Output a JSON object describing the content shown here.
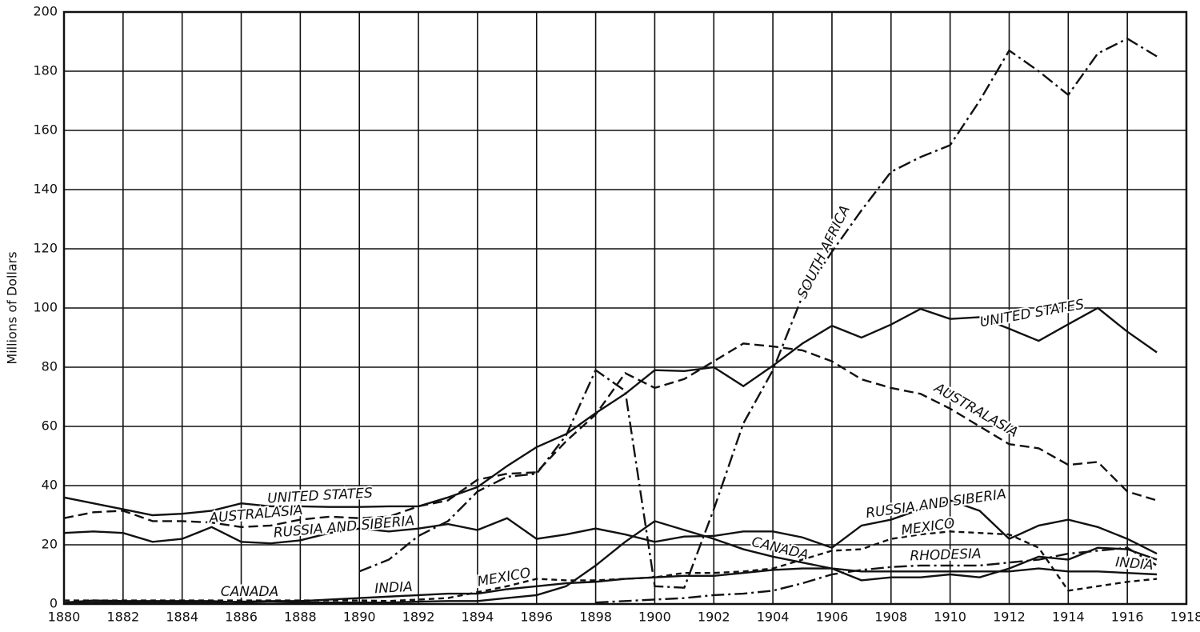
{
  "chart_data": {
    "type": "line",
    "y_label": "Millions of Dollars",
    "x": [
      1880,
      1881,
      1882,
      1883,
      1884,
      1885,
      1886,
      1887,
      1888,
      1889,
      1890,
      1891,
      1892,
      1893,
      1894,
      1895,
      1896,
      1897,
      1898,
      1899,
      1900,
      1901,
      1902,
      1903,
      1904,
      1905,
      1906,
      1907,
      1908,
      1909,
      1910,
      1911,
      1912,
      1913,
      1914,
      1915,
      1916,
      1917
    ],
    "xlim": [
      1880,
      1918
    ],
    "xticks": [
      1880,
      1882,
      1884,
      1886,
      1888,
      1890,
      1892,
      1894,
      1896,
      1898,
      1900,
      1902,
      1904,
      1906,
      1908,
      1910,
      1912,
      1914,
      1916,
      1918
    ],
    "ylim": [
      0,
      200
    ],
    "yticks": [
      0,
      20,
      40,
      60,
      80,
      100,
      120,
      140,
      160,
      180,
      200
    ],
    "grid": true,
    "series": [
      {
        "name": "UNITED STATES",
        "color": "#111111",
        "dash": "solid",
        "values": [
          36,
          34,
          32,
          30,
          30.5,
          31.5,
          34,
          33,
          33,
          32.8,
          32.8,
          33,
          33,
          36,
          39.5,
          46.6,
          53,
          57.4,
          64.5,
          71,
          79,
          78.7,
          80,
          73.6,
          80.5,
          88,
          94,
          90,
          94.4,
          99.7,
          96.3,
          96.9,
          93,
          88.9,
          94.5,
          100,
          92,
          85
        ]
      },
      {
        "name": "AUSTRALASIA",
        "color": "#111111",
        "dash": "dashed",
        "values": [
          29,
          31,
          31.5,
          28,
          28,
          27.5,
          26,
          26.5,
          28.5,
          29.5,
          29,
          29.5,
          33,
          35,
          42,
          44,
          44.5,
          55,
          64,
          78,
          73,
          76,
          82,
          88,
          87,
          85.7,
          82,
          75.9,
          73,
          71,
          66,
          60,
          54,
          52.6,
          47,
          48,
          38,
          35
        ]
      },
      {
        "name": "RUSSIA AND SIBERIA",
        "color": "#111111",
        "dash": "solid",
        "values": [
          24,
          24.5,
          24,
          21,
          22,
          26,
          21,
          20.5,
          21.5,
          24,
          25.5,
          24.5,
          25.5,
          27,
          25,
          29,
          22,
          23.5,
          25.5,
          23.5,
          21,
          22.8,
          23,
          24.5,
          24.5,
          22.5,
          19,
          26.5,
          28.5,
          32,
          35,
          31.5,
          22,
          26.5,
          28.5,
          26,
          22,
          17
        ]
      },
      {
        "name": "CANADA",
        "color": "#111111",
        "dash": "solid",
        "values": [
          0.5,
          1.2,
          1,
          1,
          1,
          1,
          0.5,
          0.8,
          0.5,
          0.5,
          0.5,
          0.5,
          0.8,
          1,
          1,
          2,
          3,
          6,
          13,
          21,
          28,
          25,
          22,
          18.5,
          16,
          14,
          12,
          8,
          9,
          9,
          10,
          9,
          12,
          16,
          15,
          19,
          18.5,
          15
        ]
      },
      {
        "name": "SOUTH AFRICA",
        "color": "#111111",
        "dash": "dashdot",
        "values": [
          null,
          null,
          null,
          null,
          null,
          null,
          null,
          null,
          null,
          null,
          11,
          15,
          23,
          28,
          38,
          43,
          44,
          57,
          79,
          72,
          6,
          5.5,
          32,
          61,
          79,
          104,
          119,
          133,
          146,
          151,
          155,
          170,
          187,
          180,
          172,
          186,
          191,
          185
        ]
      },
      {
        "name": "INDIA",
        "color": "#111111",
        "dash": "solid",
        "values": [
          0.3,
          0.5,
          0.5,
          0.5,
          0.5,
          0.5,
          0.8,
          1,
          1,
          1.5,
          2,
          2.5,
          3,
          3.5,
          3.5,
          5,
          6,
          7,
          7.5,
          8.5,
          9,
          9.5,
          9.5,
          10.5,
          11.5,
          12,
          12,
          11,
          11,
          11,
          11,
          11,
          11,
          12,
          11,
          11,
          10.5,
          10
        ]
      },
      {
        "name": "MEXICO",
        "color": "#111111",
        "dash": "shortdash",
        "values": [
          1.2,
          1.2,
          1.2,
          1.2,
          1.2,
          1.2,
          1.2,
          1.2,
          1.2,
          1.2,
          1.2,
          1,
          1.5,
          2,
          4,
          6,
          8.5,
          8,
          8,
          8.5,
          9,
          10.5,
          10.5,
          11,
          12,
          15,
          18,
          18.5,
          22,
          23.5,
          24.5,
          24,
          23.5,
          19,
          4.5,
          6,
          7.5,
          8.5
        ]
      },
      {
        "name": "RHODESIA",
        "color": "#111111",
        "dash": "dashdot",
        "values": [
          null,
          null,
          null,
          null,
          null,
          null,
          null,
          null,
          null,
          null,
          null,
          null,
          null,
          null,
          null,
          null,
          null,
          null,
          0.5,
          1,
          1.5,
          2,
          3,
          3.5,
          4.5,
          7,
          10,
          11.5,
          12.5,
          13,
          13,
          13,
          14,
          15,
          17,
          18,
          19,
          13
        ]
      }
    ]
  }
}
